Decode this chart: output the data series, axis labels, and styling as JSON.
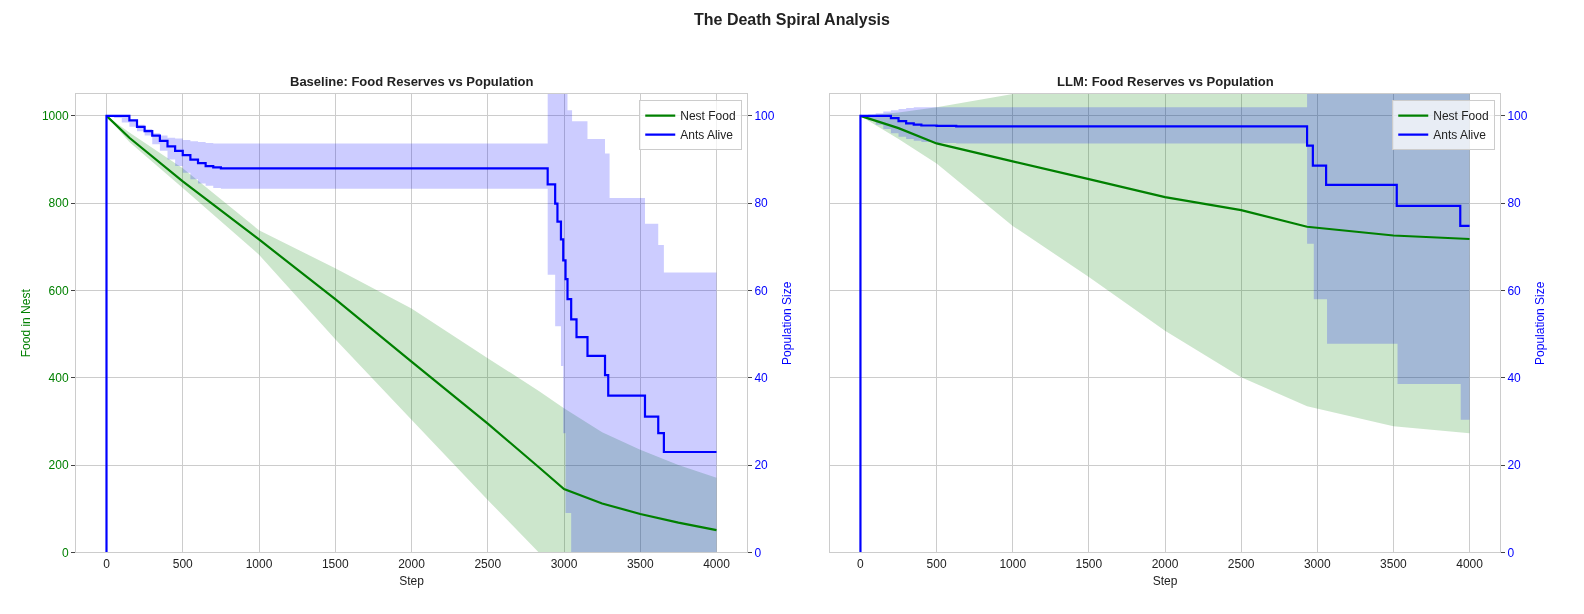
{
  "chart_data": [
    {
      "type": "line",
      "title": "Baseline: Food Reserves vs Population",
      "xlabel": "Step",
      "ylabel": "Food in Nest",
      "y2label": "Population Size",
      "annotations": [
        "The Death Spiral Analysis"
      ],
      "xlim": [
        -200,
        4200
      ],
      "xticks": [
        0,
        500,
        1000,
        1500,
        2000,
        2500,
        3000,
        3500,
        4000
      ],
      "ylim": [
        0,
        1050
      ],
      "yticks": [
        0,
        200,
        400,
        600,
        800,
        1000
      ],
      "y2lim": [
        0,
        105
      ],
      "y2ticks": [
        0,
        20,
        40,
        60,
        80,
        100
      ],
      "grid": true,
      "legend": "top right",
      "series": [
        {
          "name": "Nest Food",
          "color": "#008000",
          "type": "line",
          "x": [
            0,
            150,
            500,
            1000,
            1500,
            2000,
            2500,
            2835,
            3000,
            3250,
            3500,
            3750,
            4000
          ],
          "values": [
            1000,
            950,
            850,
            717,
            580,
            437,
            295,
            195,
            145,
            112,
            88,
            68,
            51
          ],
          "upper": [
            1000,
            962,
            880,
            738,
            651,
            559,
            445,
            370,
            330,
            275,
            235,
            200,
            171
          ],
          "lower": [
            1000,
            940,
            835,
            682,
            488,
            304,
            120,
            0,
            0,
            0,
            0,
            0,
            0
          ]
        },
        {
          "name": "Ants Alive",
          "color": "#0000ff",
          "type": "step",
          "axis": "y2",
          "x": [
            0,
            0,
            50,
            100,
            150,
            200,
            250,
            300,
            350,
            400,
            450,
            500,
            550,
            600,
            650,
            700,
            750,
            2893,
            2942,
            2957,
            2980,
            2995,
            3010,
            3023,
            3047,
            3053,
            3082,
            3154,
            3269,
            3290,
            3299,
            3531,
            3618,
            3655,
            4000
          ],
          "values": [
            0,
            100,
            100,
            100,
            99,
            97.5,
            96.5,
            95.5,
            94.3,
            93,
            92,
            91,
            90,
            89.2,
            88.5,
            88.2,
            88,
            84.3,
            79.9,
            75.8,
            71.7,
            66.9,
            62.6,
            58,
            53.4,
            53.4,
            49.3,
            45,
            40.6,
            35.9,
            35.9,
            31.1,
            27.3,
            23,
            23
          ],
          "upper": [
            0,
            100,
            100,
            100,
            99,
            98,
            97,
            96,
            95.5,
            95,
            94.8,
            94.5,
            94.2,
            94,
            93.8,
            93.7,
            93.7,
            105,
            105,
            105,
            105,
            105,
            105,
            101.3,
            101.3,
            98.8,
            98.8,
            94.7,
            91.4,
            91.4,
            81.2,
            75.3,
            70.4,
            64.1,
            64.1
          ],
          "lower": [
            0,
            100,
            99.5,
            98.5,
            97.5,
            96.5,
            95.5,
            93.5,
            92,
            90,
            88.5,
            87,
            85.5,
            84.5,
            84,
            83.5,
            83.3,
            63.6,
            51.8,
            51.8,
            42.7,
            27.3,
            9,
            9,
            0,
            0,
            0,
            0,
            0,
            0,
            0,
            0,
            0,
            0,
            0
          ]
        }
      ]
    },
    {
      "type": "line",
      "title": "LLM: Food Reserves vs Population",
      "xlabel": "Step",
      "y2label": "Population Size",
      "xlim": [
        -200,
        4200
      ],
      "xticks": [
        0,
        500,
        1000,
        1500,
        2000,
        2500,
        3000,
        3500,
        4000
      ],
      "ylim": [
        0,
        1050
      ],
      "y2lim": [
        0,
        105
      ],
      "y2ticks": [
        0,
        20,
        40,
        60,
        80,
        100
      ],
      "grid": true,
      "legend": "top right",
      "tick_labels": [
        "x",
        "y2"
      ],
      "series": [
        {
          "name": "Nest Food",
          "color": "#008000",
          "type": "line",
          "x": [
            0,
            250,
            500,
            1000,
            1500,
            2000,
            2500,
            2933,
            3500,
            4000
          ],
          "values": [
            1000,
            972,
            937,
            896,
            855,
            814,
            784,
            746,
            726,
            718
          ],
          "upper": [
            1000,
            1008,
            1020,
            1050,
            1050,
            1050,
            1050,
            1050,
            1050,
            1050
          ],
          "lower": [
            1000,
            947,
            891,
            748,
            631,
            508,
            401,
            335,
            289,
            273
          ]
        },
        {
          "name": "Ants Alive",
          "color": "#0000ff",
          "type": "step",
          "axis": "y2",
          "x": [
            0,
            0,
            50,
            100,
            150,
            200,
            250,
            300,
            350,
            400,
            500,
            629,
            2933,
            2971,
            2977,
            3058,
            3064,
            3522,
            3527,
            3939,
            3942,
            4000
          ],
          "values": [
            0,
            100,
            100,
            100,
            100,
            99.5,
            98.8,
            98.3,
            98,
            97.8,
            97.7,
            97.6,
            93.2,
            88.6,
            88.6,
            84.2,
            84.2,
            79.4,
            79.4,
            74.8,
            74.8,
            74.8
          ],
          "upper": [
            0,
            100,
            100.3,
            100.6,
            101,
            101.3,
            101.6,
            101.8,
            102,
            102,
            102,
            102,
            105,
            105,
            105,
            105,
            105,
            105,
            105,
            105,
            105,
            105
          ],
          "lower": [
            0,
            100,
            99,
            98,
            97,
            96,
            95.2,
            94.7,
            94.3,
            94,
            93.8,
            93.7,
            70.7,
            70.7,
            58,
            58,
            47.8,
            47.8,
            38.6,
            38.6,
            30.4,
            30.4
          ]
        }
      ]
    }
  ]
}
